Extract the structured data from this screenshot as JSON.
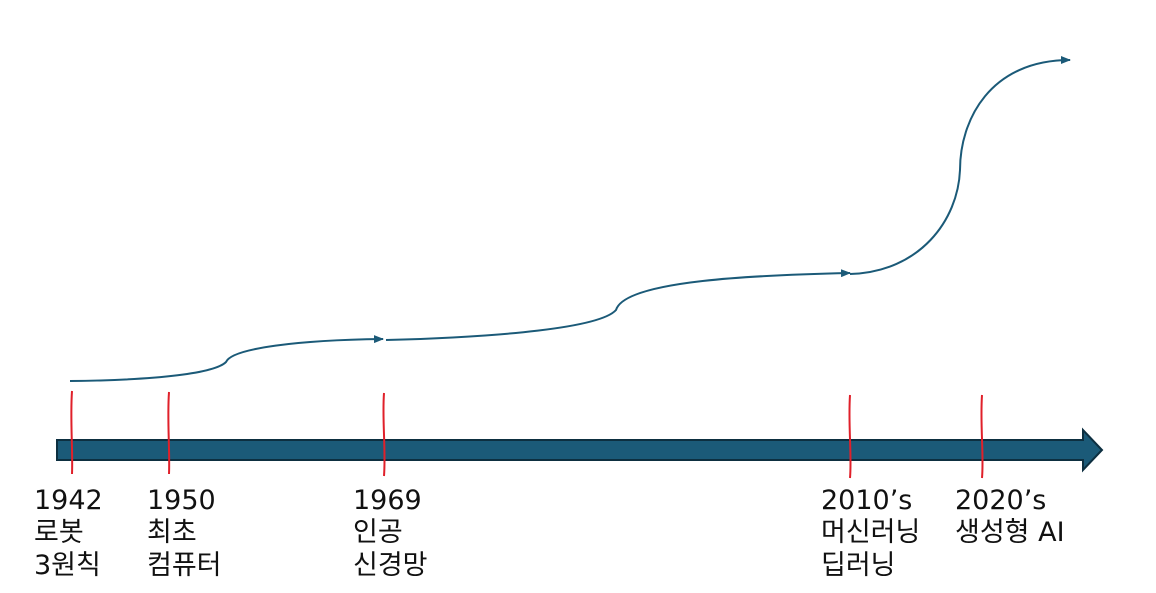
{
  "colors": {
    "axis_fill": "#1b5a78",
    "axis_stroke": "#0d2f40",
    "curve": "#1b5a78",
    "tick": "#e0202a",
    "text": "#111111"
  },
  "milestones": [
    {
      "year": "1942",
      "lines": [
        "로봇",
        "3원칙"
      ]
    },
    {
      "year": "1950",
      "lines": [
        "최초",
        "컴퓨터"
      ]
    },
    {
      "year": "1969",
      "lines": [
        "인공",
        "신경망"
      ]
    },
    {
      "year": "2010’s",
      "lines": [
        "머신러닝",
        "딥러닝"
      ]
    },
    {
      "year": "2020’s",
      "lines": [
        "생성형 AI"
      ]
    }
  ]
}
